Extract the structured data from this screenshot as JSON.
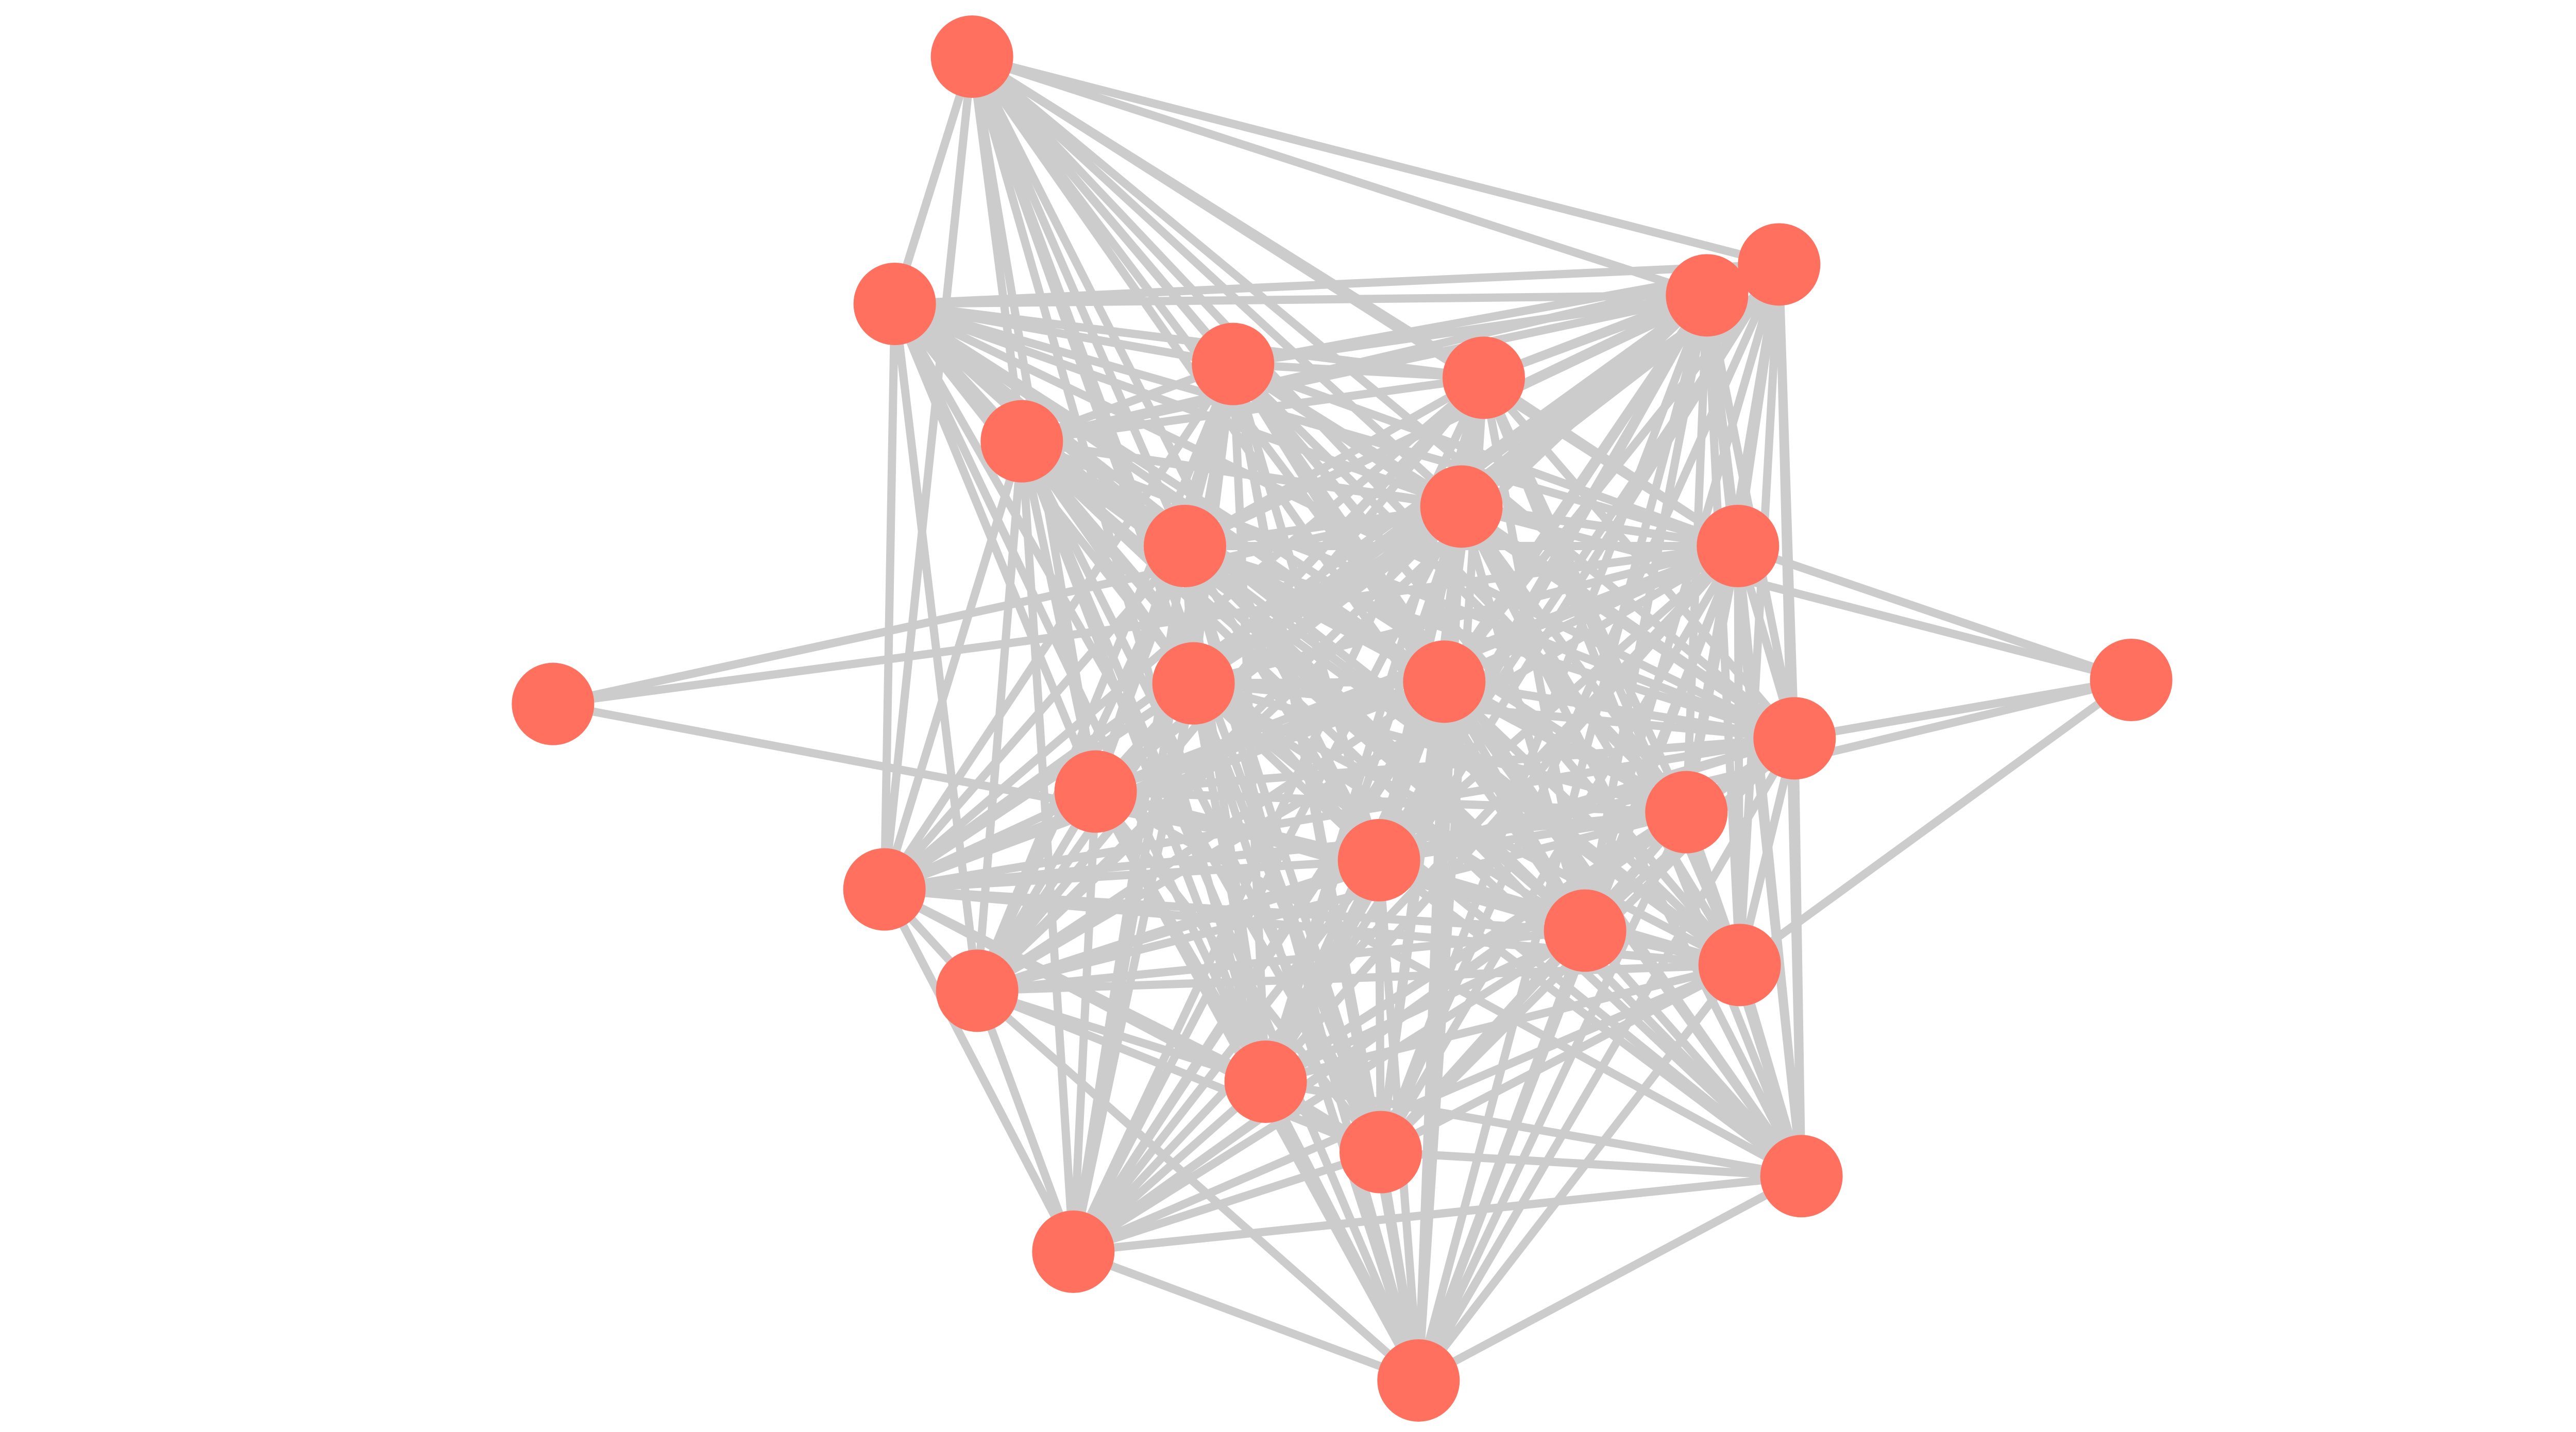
{
  "graph": {
    "node_color": "#FF705F",
    "edge_color": "#CCCCCC",
    "background": "#FFFFFF",
    "node_count": 27,
    "adjacency": {
      "1": [
        2,
        3,
        4,
        5,
        6,
        7,
        8,
        9,
        10,
        13,
        14,
        15,
        16,
        17,
        18,
        19,
        20,
        21,
        23,
        24
      ],
      "2": [
        3,
        4,
        5,
        6,
        7,
        8,
        9,
        10,
        13,
        14,
        15,
        16,
        17,
        18,
        19,
        20,
        21,
        22,
        23,
        24
      ],
      "3": [
        4,
        5,
        6,
        7,
        8,
        9,
        10,
        13,
        14,
        15,
        16,
        17,
        19,
        20,
        21,
        23,
        24,
        25
      ],
      "4": [
        5,
        6,
        7,
        8,
        9,
        10,
        13,
        14,
        15,
        16,
        17,
        18,
        19,
        20,
        21,
        22,
        23,
        24,
        25,
        26,
        27
      ],
      "5": [
        6,
        7,
        8,
        9,
        10,
        13,
        14,
        15,
        16,
        17,
        18,
        19,
        20,
        21,
        22,
        23,
        24,
        25,
        26,
        27
      ],
      "6": [
        7,
        8,
        9,
        10,
        13,
        14,
        15,
        16,
        17,
        18,
        19,
        20,
        21,
        22,
        23,
        24,
        25,
        26,
        27
      ],
      "7": [
        8,
        9,
        10,
        13,
        14,
        15,
        16,
        17,
        18,
        19,
        20,
        21,
        22,
        23,
        24,
        25,
        26,
        27
      ],
      "8": [
        9,
        10,
        11,
        12,
        13,
        14,
        15,
        16,
        17,
        18,
        19,
        20,
        21,
        22,
        23,
        24,
        25,
        26,
        27
      ],
      "9": [
        10,
        13,
        14,
        15,
        16,
        17,
        18,
        19,
        20,
        21,
        22,
        23,
        24,
        25,
        26,
        27
      ],
      "10": [
        11,
        12,
        13,
        14,
        15,
        16,
        17,
        18,
        19,
        20,
        21,
        22,
        23,
        24,
        25,
        26,
        27
      ],
      "11": [
        19
      ],
      "12": [
        15,
        19,
        21
      ],
      "13": [
        14,
        15,
        16,
        17,
        18,
        19,
        20,
        21,
        22,
        23,
        24,
        25,
        26,
        27
      ],
      "14": [
        15,
        16,
        17,
        18,
        19,
        20,
        21,
        22,
        23,
        24,
        25,
        26,
        27
      ],
      "15": [
        16,
        17,
        18,
        19,
        20,
        21,
        22,
        23,
        24,
        25,
        26,
        27
      ],
      "16": [
        17,
        18,
        19,
        20,
        21,
        22,
        23,
        24,
        25,
        26,
        27
      ],
      "17": [
        18,
        19,
        20,
        21,
        22,
        23,
        24,
        25,
        26,
        27
      ],
      "18": [
        19,
        20,
        21,
        22,
        23,
        24,
        26
      ],
      "19": [
        20,
        21,
        22,
        23,
        24,
        25,
        26,
        27
      ],
      "20": [
        21,
        22,
        23,
        24,
        25,
        26,
        27
      ],
      "21": [
        22,
        23,
        24,
        25,
        26,
        27
      ],
      "22": [
        23,
        24,
        26,
        27
      ],
      "23": [
        24,
        25,
        26,
        27
      ],
      "24": [
        25,
        26,
        27
      ],
      "25": [
        26,
        27
      ],
      "26": [
        27
      ]
    }
  }
}
